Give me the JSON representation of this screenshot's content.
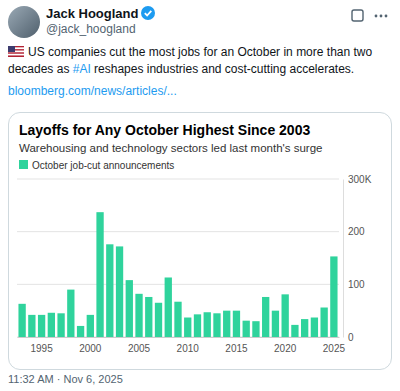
{
  "tweet": {
    "author": "Jack Hoogland",
    "handle": "@jack_hoogland",
    "text_before": "US companies cut the most jobs for an October in more than two decades as ",
    "hashtag": "#AI",
    "text_after": " reshapes industries and cost-cutting accelerates.",
    "link": "bloomberg.com/news/articles/...",
    "timestamp": "11:32 AM · Nov 6, 2025"
  },
  "chart_data": {
    "type": "bar",
    "title": "Layoffs for Any October Highest Since 2003",
    "subtitle": "Warehousing and technology sectors led last month's surge",
    "categories": [
      null,
      null,
      "1995",
      null,
      null,
      null,
      null,
      "2000",
      null,
      null,
      null,
      null,
      "2005",
      null,
      null,
      null,
      null,
      "2010",
      null,
      null,
      null,
      null,
      "2015",
      null,
      null,
      null,
      null,
      "2020",
      null,
      null,
      null,
      null,
      "2025"
    ],
    "series": [
      {
        "name": "October job-cut announcements",
        "color": "#2fd39c",
        "values": [
          63,
          42,
          42,
          46,
          45,
          90,
          21,
          42,
          237,
          176,
          172,
          108,
          82,
          76,
          65,
          113,
          67,
          37,
          43,
          47,
          45,
          50,
          50,
          31,
          30,
          76,
          50,
          81,
          23,
          34,
          37,
          56,
          153
        ]
      }
    ],
    "ylim": [
      0,
      300
    ],
    "yticks": [
      0,
      100,
      200,
      {
        "value": 300,
        "label": "300K"
      }
    ],
    "grid": true,
    "legend": "top-left"
  }
}
